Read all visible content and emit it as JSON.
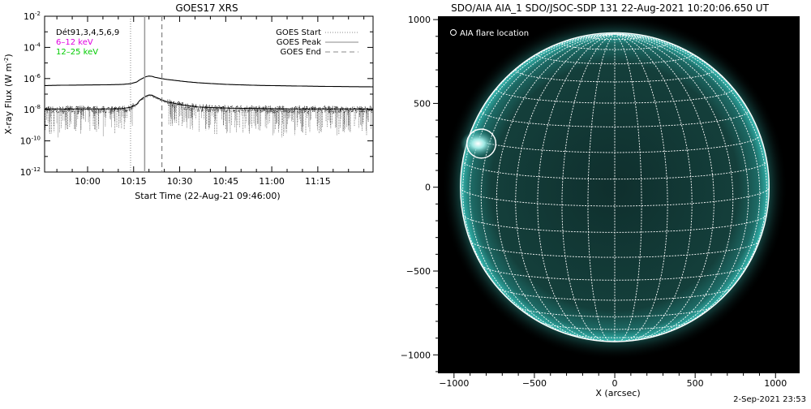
{
  "chart_data": [
    {
      "type": "line",
      "title": "GOES17 XRS",
      "xlabel": "Start Time (22-Aug-21 09:46:00)",
      "ylabel": "X-ray Flux (W m",
      "ylabel_sup": "-2",
      "ylabel_close": ")",
      "x_ticks": [
        "10:00",
        "10:15",
        "10:30",
        "10:45",
        "11:00",
        "11:15"
      ],
      "x_tick_minutes": [
        14,
        29,
        44,
        59,
        74,
        89
      ],
      "xlim_minutes": [
        0,
        107
      ],
      "y_scale": "log",
      "ylim_exp": [
        -12,
        -2
      ],
      "y_tick_exps": [
        -12,
        -10,
        -8,
        -6,
        -4,
        -2
      ],
      "y_tick_base": "10",
      "y_tick_labels": [
        "-12",
        "-10",
        "-8",
        "-6",
        "-4",
        "-2"
      ],
      "legend_left": [
        {
          "text": "Dét91,3,4,5,6,9",
          "color": "#000000"
        },
        {
          "text": "6–12 keV",
          "color": "#e000e0"
        },
        {
          "text": "12–25 keV",
          "color": "#00cc00"
        }
      ],
      "legend_right": [
        {
          "text": "GOES Start",
          "style": "dotted"
        },
        {
          "text": "GOES Peak",
          "style": "solid"
        },
        {
          "text": "GOES End",
          "style": "dashed"
        }
      ],
      "event_lines_minutes": {
        "start": 28.0,
        "peak": 32.6,
        "end": 38.2
      },
      "series": [
        {
          "style": "long",
          "x": [
            0,
            5,
            10,
            15,
            20,
            25,
            28,
            30,
            31,
            32,
            33,
            34,
            35,
            36,
            38,
            40,
            43,
            46,
            50,
            55,
            60,
            65,
            70,
            80,
            90,
            100,
            107
          ],
          "log_y": [
            -6.45,
            -6.43,
            -6.42,
            -6.41,
            -6.4,
            -6.38,
            -6.33,
            -6.22,
            -6.08,
            -5.98,
            -5.88,
            -5.84,
            -5.86,
            -5.92,
            -6.0,
            -6.06,
            -6.13,
            -6.2,
            -6.27,
            -6.33,
            -6.38,
            -6.41,
            -6.44,
            -6.47,
            -6.5,
            -6.52,
            -6.53
          ]
        },
        {
          "style": "short",
          "x": [
            0,
            10,
            20,
            25,
            28,
            30,
            31,
            32,
            33,
            34,
            35,
            36,
            38,
            40,
            45,
            50,
            60,
            80,
            100,
            107
          ],
          "log_y": [
            -8.0,
            -8.0,
            -8.0,
            -7.98,
            -7.9,
            -7.7,
            -7.45,
            -7.3,
            -7.18,
            -7.1,
            -7.12,
            -7.22,
            -7.4,
            -7.55,
            -7.75,
            -7.88,
            -7.95,
            -8.0,
            -8.0,
            -8.0
          ]
        }
      ]
    },
    {
      "type": "image",
      "title": "SDO/AIA AIA_1 SDO/JSOC-SDP 131 22-Aug-2021 10:20:06.650 UT",
      "xlabel": "X (arcsec)",
      "x_ticks": [
        -1000,
        -500,
        0,
        500,
        1000
      ],
      "y_ticks": [
        1000,
        500,
        0,
        -500,
        -1000
      ],
      "xlim": [
        -1100,
        1150
      ],
      "ylim": [
        -1110,
        1020
      ],
      "legend": "AIA flare location",
      "solar_radius_arcsec": 960,
      "flare_location_arcsec": [
        -830,
        260
      ],
      "flare_circle_radius_arcsec": 90,
      "colors": {
        "disk": "#123d3a",
        "limb": "#2aa6a0",
        "background": "#000000",
        "grid": "#ffffff"
      }
    }
  ],
  "footer_timestamp": "2-Sep-2021 23:53"
}
